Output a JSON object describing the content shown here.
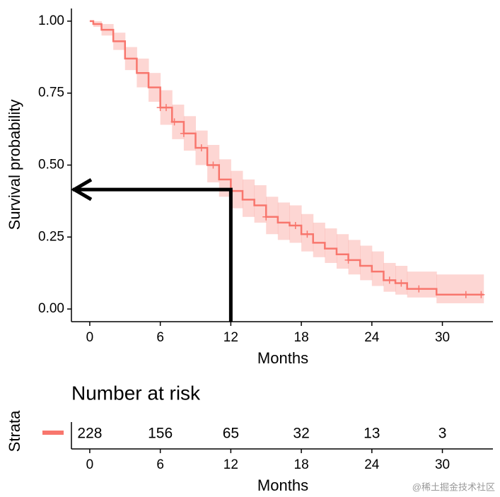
{
  "chart_data": {
    "type": "survival",
    "xlabel": "Months",
    "ylabel": "Survival probability",
    "xlim": [
      -1.56,
      34.3
    ],
    "ylim": [
      -0.044,
      1.044
    ],
    "xticks": [
      0,
      6,
      12,
      18,
      24,
      30
    ],
    "yticks": [
      {
        "value": 0,
        "label": "0.00"
      },
      {
        "value": 0.25,
        "label": "0.25"
      },
      {
        "value": 0.5,
        "label": "0.50"
      },
      {
        "value": 0.75,
        "label": "0.75"
      },
      {
        "value": 1,
        "label": "1.00"
      }
    ],
    "series": [
      {
        "color": "#f8766d",
        "x": [
          0,
          0.3,
          1,
          2,
          3,
          4,
          5,
          6,
          7,
          8,
          9,
          10,
          11,
          12,
          13,
          14,
          15,
          16,
          17,
          18,
          19,
          20,
          21,
          22,
          23,
          24,
          25,
          26,
          27,
          29.5,
          33.5
        ],
        "values": [
          1,
          0.99,
          0.97,
          0.93,
          0.87,
          0.82,
          0.77,
          0.7,
          0.65,
          0.61,
          0.56,
          0.5,
          0.45,
          0.41,
          0.38,
          0.36,
          0.32,
          0.3,
          0.29,
          0.26,
          0.23,
          0.21,
          0.19,
          0.17,
          0.15,
          0.13,
          0.1,
          0.09,
          0.07,
          0.05,
          0.05
        ],
        "upper": [
          1,
          1,
          0.99,
          0.96,
          0.91,
          0.87,
          0.82,
          0.76,
          0.71,
          0.67,
          0.62,
          0.57,
          0.52,
          0.48,
          0.45,
          0.43,
          0.39,
          0.37,
          0.36,
          0.33,
          0.3,
          0.28,
          0.26,
          0.24,
          0.22,
          0.2,
          0.16,
          0.15,
          0.13,
          0.12,
          0.12
        ],
        "lower": [
          1,
          0.98,
          0.95,
          0.9,
          0.83,
          0.77,
          0.72,
          0.64,
          0.59,
          0.55,
          0.5,
          0.44,
          0.39,
          0.35,
          0.32,
          0.3,
          0.26,
          0.24,
          0.23,
          0.2,
          0.18,
          0.16,
          0.14,
          0.12,
          0.1,
          0.08,
          0.06,
          0.05,
          0.04,
          0.02,
          0.02
        ],
        "censor_x": [
          6,
          6.5,
          7.2,
          8,
          9.5,
          10.5,
          15,
          17.5,
          18.5,
          22,
          25.5,
          26.5,
          28,
          32,
          33.3
        ],
        "censor_y": [
          0.7,
          0.7,
          0.65,
          0.61,
          0.56,
          0.5,
          0.32,
          0.29,
          0.26,
          0.17,
          0.1,
          0.09,
          0.07,
          0.05,
          0.05
        ]
      }
    ],
    "annotation": {
      "x": 12,
      "y": 0.415,
      "color": "#000000"
    },
    "risk_table": {
      "title": "Number at risk",
      "strata_label": "Strata",
      "xlabel": "Months",
      "times": [
        0,
        6,
        12,
        18,
        24,
        30
      ],
      "counts": [
        228,
        156,
        65,
        32,
        13,
        3
      ]
    },
    "watermark": "@稀土掘金技术社区"
  }
}
